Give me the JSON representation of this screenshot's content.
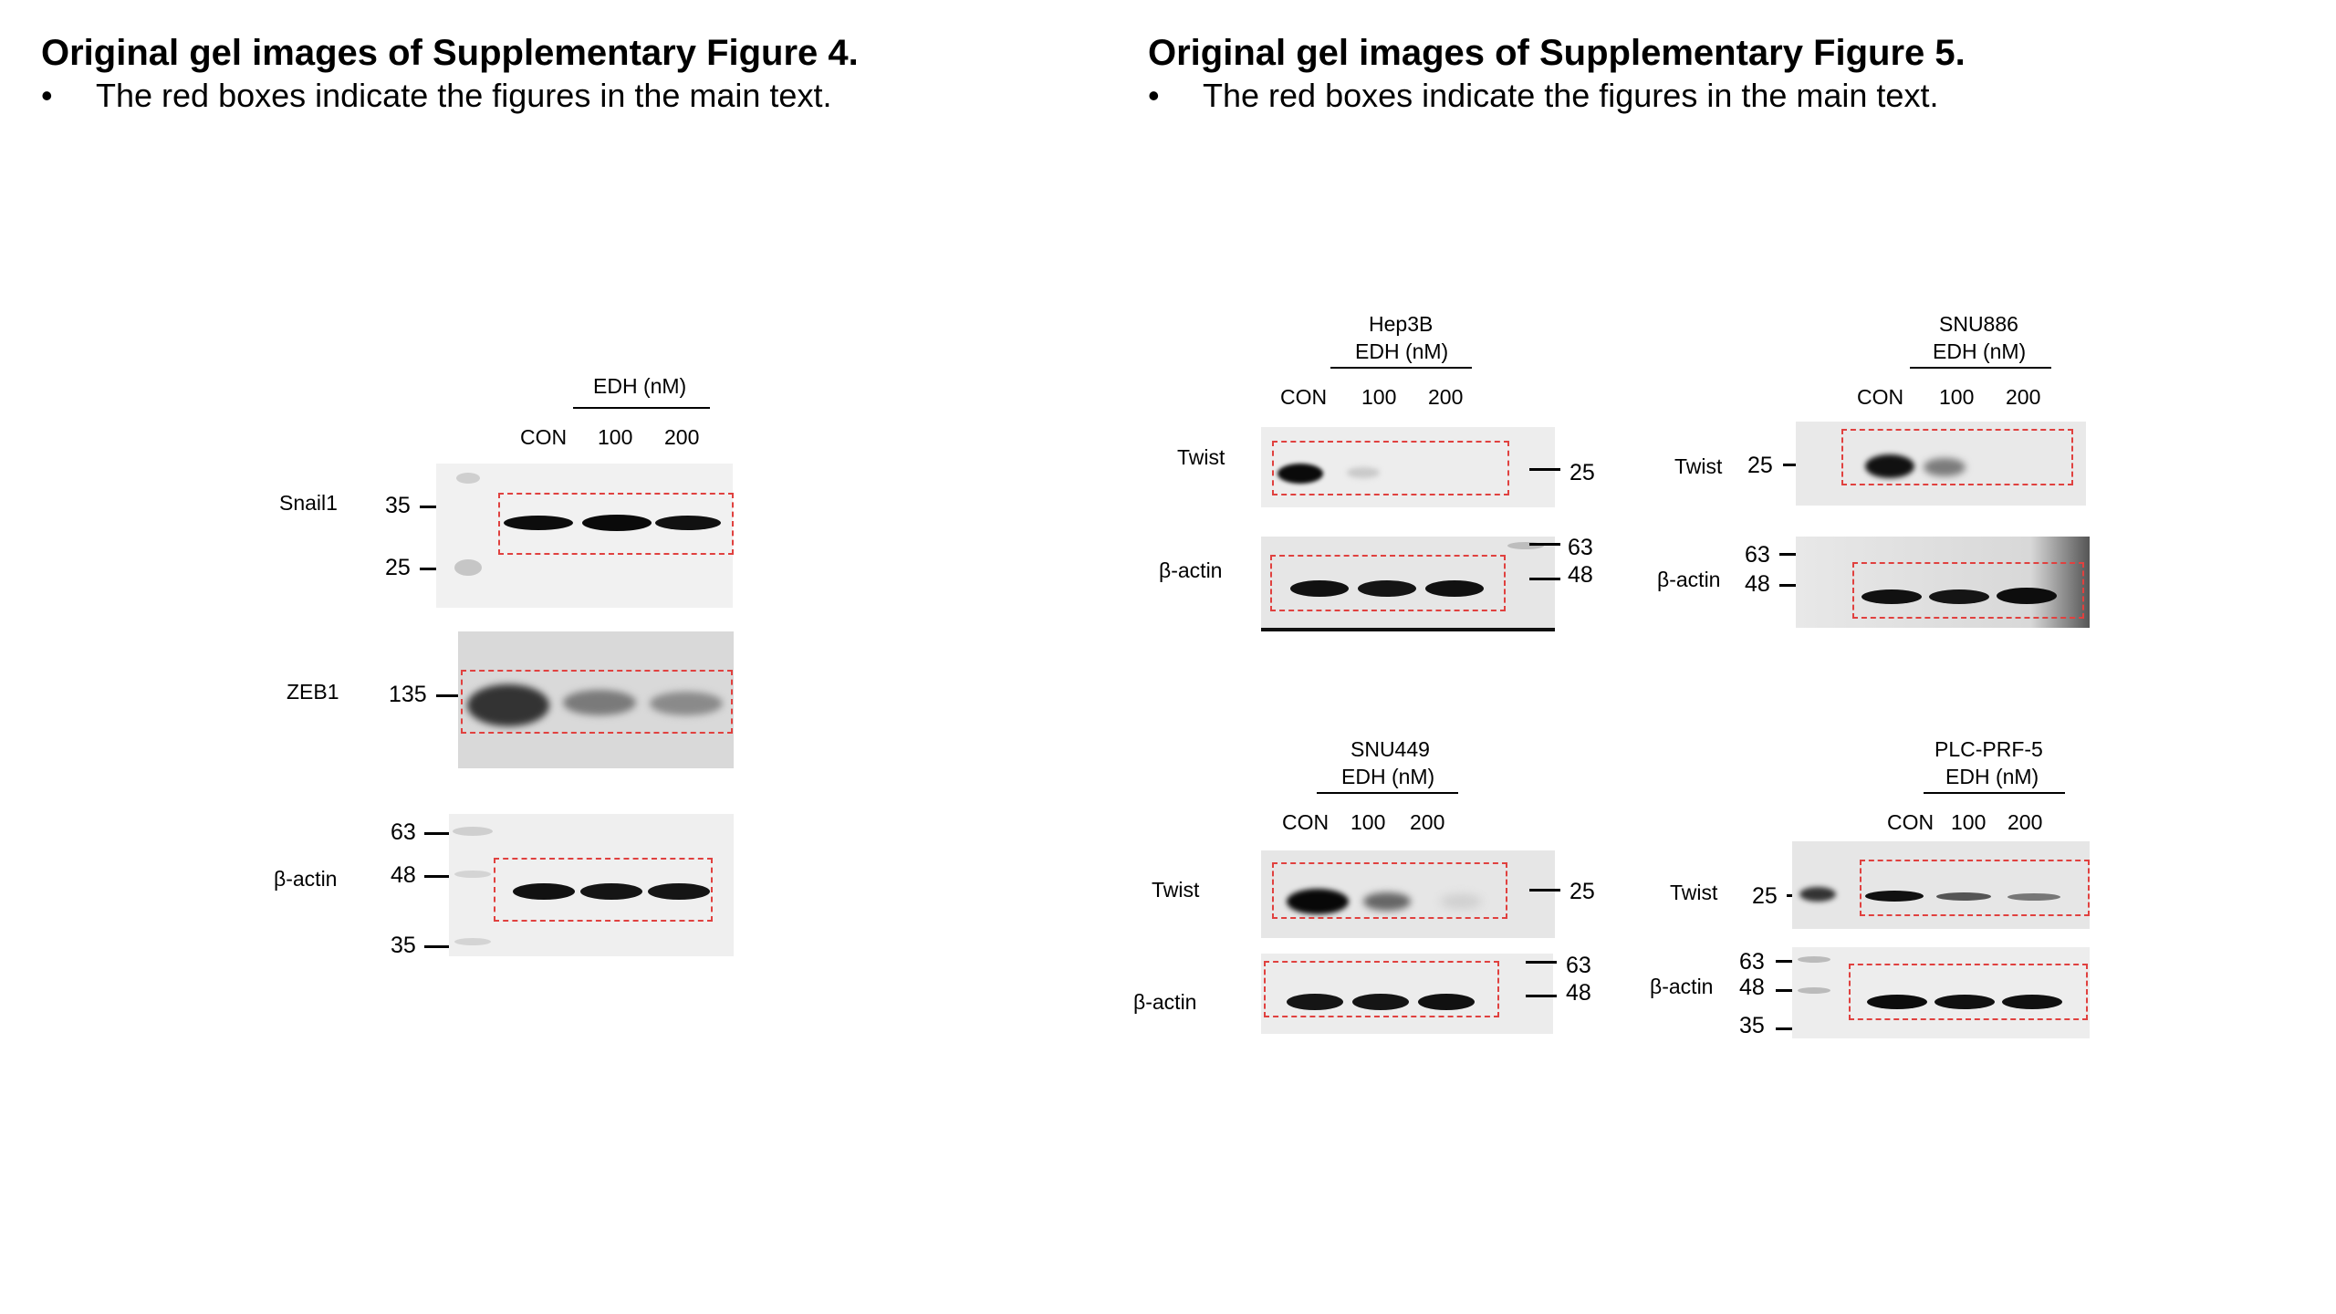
{
  "left": {
    "heading": "Original gel images of Supplementary Figure 4.",
    "bullet": "•",
    "note": "The red boxes indicate the figures in the main text.",
    "treatment": "EDH (nM)",
    "lanes": [
      "CON",
      "100",
      "200"
    ],
    "rows": [
      {
        "name": "Snail1",
        "markers": [
          "35",
          "25"
        ]
      },
      {
        "name": "ZEB1",
        "markers": [
          "135"
        ]
      },
      {
        "name": "β-actin",
        "markers": [
          "63",
          "48",
          "35"
        ]
      }
    ]
  },
  "right": {
    "heading": "Original gel images of Supplementary Figure 5.",
    "bullet": "•",
    "note": "The red boxes indicate the figures in the main text.",
    "panels": [
      {
        "cell_line": "Hep3B",
        "treatment": "EDH (nM)",
        "lanes": [
          "CON",
          "100",
          "200"
        ],
        "twist_label": "Twist",
        "twist_markers": [
          "25"
        ],
        "actin_label": "β-actin",
        "actin_markers": [
          "63",
          "48"
        ]
      },
      {
        "cell_line": "SNU886",
        "treatment": "EDH (nM)",
        "lanes": [
          "CON",
          "100",
          "200"
        ],
        "twist_label": "Twist",
        "twist_markers": [
          "25"
        ],
        "actin_label": "β-actin",
        "actin_markers": [
          "63",
          "48"
        ]
      },
      {
        "cell_line": "SNU449",
        "treatment": "EDH (nM)",
        "lanes": [
          "CON",
          "100",
          "200"
        ],
        "twist_label": "Twist",
        "twist_markers": [
          "25"
        ],
        "actin_label": "β-actin",
        "actin_markers": [
          "63",
          "48"
        ]
      },
      {
        "cell_line": "PLC-PRF-5",
        "treatment": "EDH (nM)",
        "lanes": [
          "CON",
          "100",
          "200"
        ],
        "twist_label": "Twist",
        "twist_markers": [
          "25"
        ],
        "actin_label": "β-actin",
        "actin_markers": [
          "63",
          "48",
          "35"
        ]
      }
    ]
  },
  "colors": {
    "dashed_box": "#e0413f"
  }
}
